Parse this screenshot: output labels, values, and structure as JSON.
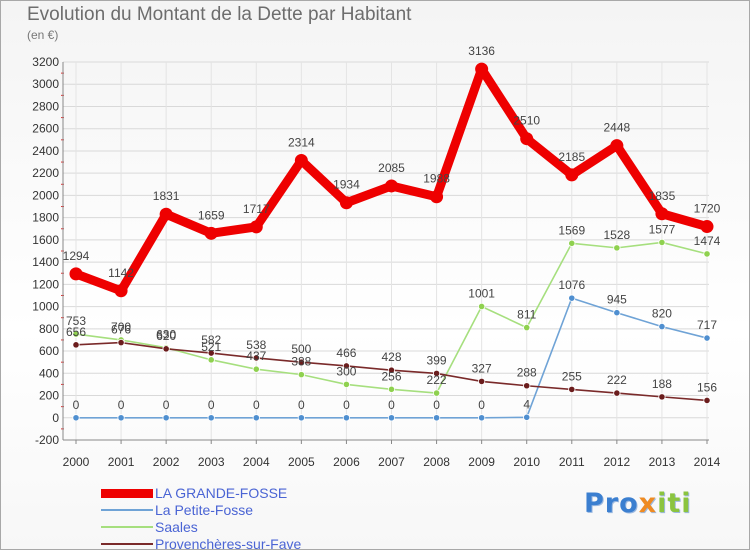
{
  "header": {
    "title": "Evolution du Montant de la Dette par Habitant",
    "unit": "(en €)"
  },
  "brand": {
    "parts": [
      "Pro",
      "x",
      "iti"
    ]
  },
  "chart_data": {
    "type": "line",
    "title": "Evolution du Montant de la Dette par Habitant",
    "subtitle": "(en €)",
    "xlabel": "",
    "ylabel": "",
    "x": [
      "2000",
      "2001",
      "2002",
      "2003",
      "2004",
      "2005",
      "2006",
      "2007",
      "2008",
      "2009",
      "2010",
      "2011",
      "2012",
      "2013",
      "2014"
    ],
    "ylim": [
      -200,
      3200
    ],
    "yticks": [
      -200,
      0,
      200,
      400,
      600,
      800,
      1000,
      1200,
      1400,
      1600,
      1800,
      2000,
      2200,
      2400,
      2600,
      2800,
      3000,
      3200
    ],
    "grid": true,
    "legend_position": "bottom-left",
    "series": [
      {
        "name": "LA GRANDE-FOSSE",
        "color": "#ee0000",
        "marker_color": "#ee0000",
        "values": [
          1294,
          1142,
          1831,
          1659,
          1717,
          2314,
          1934,
          2085,
          1988,
          3136,
          2510,
          2185,
          2448,
          1835,
          1720
        ],
        "labels": [
          "1294",
          "1142",
          "1831",
          "1659",
          "1717",
          "2314",
          "1934",
          "2085",
          "1988",
          "3136",
          "2510",
          "2185",
          "2448",
          "1835",
          "1720"
        ]
      },
      {
        "name": "La Petite-Fosse",
        "color": "#6fa3d6",
        "marker_color": "#4f8fd0",
        "values": [
          0,
          0,
          0,
          0,
          0,
          0,
          0,
          0,
          0,
          0,
          4,
          1076,
          945,
          820,
          717
        ],
        "labels": [
          "0",
          "0",
          "0",
          "0",
          "0",
          "0",
          "0",
          "0",
          "0",
          "0",
          "4",
          "1076",
          "945",
          "820",
          "717"
        ]
      },
      {
        "name": "Saales",
        "color": "#a6df7e",
        "marker_color": "#8fd14f",
        "values": [
          753,
          700,
          630,
          521,
          437,
          388,
          300,
          256,
          222,
          1001,
          811,
          1569,
          1528,
          1577,
          1474
        ],
        "labels": [
          "753",
          "700",
          "630",
          "521",
          "437",
          "388",
          "300",
          "256",
          "222",
          "1001",
          "811",
          "1569",
          "1528",
          "1577",
          "1474"
        ]
      },
      {
        "name": "Provenchères-sur-Fave",
        "color": "#7a2a2a",
        "marker_color": "#6b1d1d",
        "values": [
          656,
          676,
          620,
          582,
          538,
          500,
          466,
          428,
          399,
          327,
          288,
          255,
          222,
          188,
          156
        ],
        "labels": [
          "656",
          "676",
          "620",
          "582",
          "538",
          "500",
          "466",
          "428",
          "399",
          "327",
          "288",
          "255",
          "222",
          "188",
          "156"
        ]
      }
    ]
  }
}
